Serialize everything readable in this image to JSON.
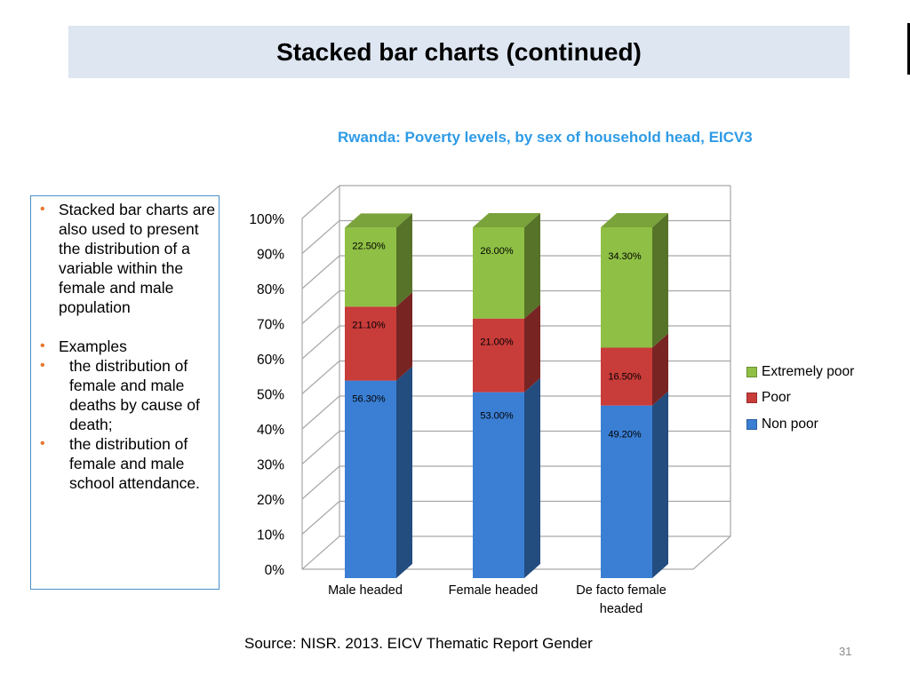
{
  "slide": {
    "title": "Stacked bar charts (continued)",
    "source": "Source: NISR. 2013. EICV Thematic Report Gender",
    "page_number": "31"
  },
  "bullets": [
    {
      "text": "Stacked bar charts are also used to present the distribution of a variable within the female and male population",
      "indent": false,
      "gap": false
    },
    {
      "text": "Examples",
      "indent": false,
      "gap": true
    },
    {
      "text": "the distribution of female and male deaths by cause of death;",
      "indent": true,
      "gap": false
    },
    {
      "text": "the distribution of female and male school attendance.",
      "indent": true,
      "gap": false
    }
  ],
  "chart_data": {
    "type": "bar",
    "stacked": true,
    "percent_stacked": true,
    "style": "3d-stacked-column",
    "title": "Rwanda: Poverty levels, by sex of household head, EICV3",
    "categories": [
      "Male headed",
      "Female headed",
      "De facto female headed"
    ],
    "series": [
      {
        "name": "Non poor",
        "values": [
          56.3,
          53.0,
          49.2
        ],
        "labels": [
          "56.30%",
          "53.00%",
          "49.20%"
        ],
        "color": "#3b7fd4"
      },
      {
        "name": "Poor",
        "values": [
          21.1,
          21.0,
          16.5
        ],
        "labels": [
          "21.10%",
          "21.00%",
          "16.50%"
        ],
        "color": "#c83c3a"
      },
      {
        "name": "Extremely poor",
        "values": [
          22.5,
          26.0,
          34.3
        ],
        "labels": [
          "22.50%",
          "26.00%",
          "34.30%"
        ],
        "color": "#8fc045"
      }
    ],
    "ylim": [
      0,
      100
    ],
    "yticks": [
      "0%",
      "10%",
      "20%",
      "30%",
      "40%",
      "50%",
      "60%",
      "70%",
      "80%",
      "90%",
      "100%"
    ],
    "grid": true,
    "legend_position": "right",
    "legend_order": [
      "Extremely poor",
      "Poor",
      "Non poor"
    ]
  }
}
